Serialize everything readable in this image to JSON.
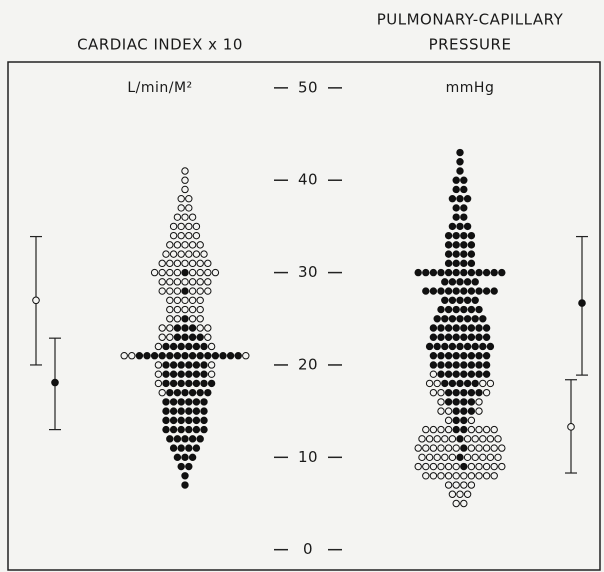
{
  "chart_data": {
    "type": "dotplot",
    "ylim": [
      -2.2,
      52.8
    ],
    "yticks": [
      0,
      10,
      20,
      30,
      40,
      50
    ],
    "panels": [
      {
        "title": [
          "CARDIAC INDEX x 10"
        ],
        "unit": "L/min/M²",
        "levels": [
          41,
          40,
          39,
          38,
          37,
          36,
          35,
          34,
          33,
          32,
          31,
          30,
          29,
          28,
          27,
          26,
          25,
          24,
          23,
          22,
          21,
          20,
          19,
          18,
          17,
          16,
          15,
          14,
          13,
          12,
          11,
          10,
          9,
          8,
          7
        ],
        "open": [
          1,
          1,
          1,
          2,
          2,
          3,
          4,
          4,
          5,
          6,
          7,
          8,
          7,
          6,
          5,
          5,
          4,
          4,
          3,
          2,
          3,
          2,
          2,
          1,
          1,
          0,
          0,
          0,
          0,
          0,
          0,
          0,
          0,
          0,
          0
        ],
        "filled": [
          0,
          0,
          0,
          0,
          0,
          0,
          0,
          0,
          0,
          0,
          0,
          1,
          0,
          1,
          0,
          0,
          1,
          3,
          4,
          6,
          14,
          6,
          6,
          7,
          6,
          6,
          6,
          6,
          6,
          5,
          4,
          3,
          2,
          1,
          1
        ],
        "open_stats": {
          "mean": 27,
          "low": 20,
          "high": 33.9
        },
        "filled_stats": {
          "mean": 18.1,
          "low": 13,
          "high": 22.9
        }
      },
      {
        "title": [
          "PULMONARY-CAPILLARY",
          "PRESSURE"
        ],
        "unit": "mmHg",
        "levels": [
          43,
          42,
          41,
          40,
          39,
          38,
          37,
          36,
          35,
          34,
          33,
          32,
          31,
          30,
          29,
          28,
          27,
          26,
          25,
          24,
          23,
          22,
          21,
          20,
          19,
          18,
          17,
          16,
          15,
          14,
          13,
          12,
          11,
          10,
          9,
          8,
          7,
          6,
          5
        ],
        "open": [
          0,
          0,
          0,
          0,
          0,
          0,
          0,
          0,
          0,
          0,
          0,
          0,
          0,
          0,
          0,
          0,
          0,
          0,
          0,
          0,
          0,
          0,
          0,
          0,
          1,
          4,
          3,
          2,
          3,
          2,
          8,
          10,
          11,
          10,
          11,
          10,
          4,
          3,
          2
        ],
        "filled": [
          1,
          1,
          1,
          2,
          2,
          3,
          2,
          2,
          3,
          4,
          4,
          4,
          4,
          12,
          5,
          10,
          5,
          6,
          7,
          8,
          8,
          9,
          8,
          8,
          7,
          5,
          5,
          4,
          3,
          2,
          2,
          1,
          1,
          1,
          1,
          0,
          0,
          0,
          0
        ],
        "open_stats": {
          "mean": 13.3,
          "low": 8.3,
          "high": 18.4
        },
        "filled_stats": {
          "mean": 26.7,
          "low": 18.9,
          "high": 33.9
        }
      }
    ]
  }
}
